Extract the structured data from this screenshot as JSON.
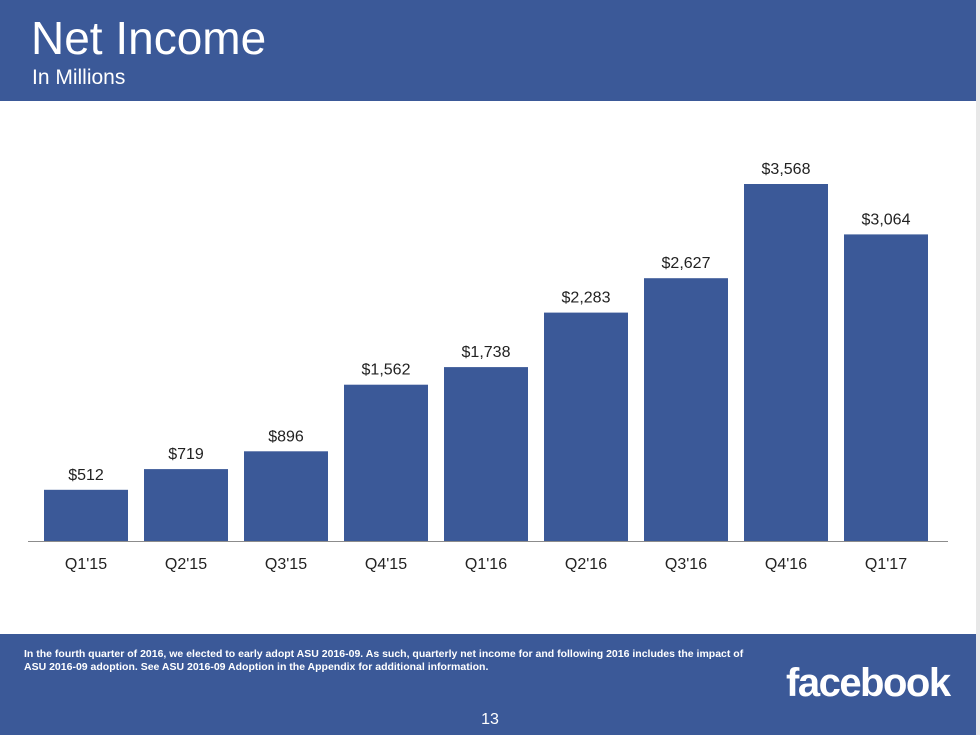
{
  "slide": {
    "title": "Net Income",
    "subtitle": "In Millions",
    "footnote": "In the fourth quarter of 2016, we elected to early adopt ASU 2016-09. As such, quarterly net income for and following 2016 includes the impact of ASU 2016-09 adoption. See ASU 2016-09 Adoption in the Appendix for additional information.",
    "logo_text": "facebook",
    "page_number": "13"
  },
  "colors": {
    "brand": "#3b5998",
    "bar": "#3b5998",
    "text": "#222222"
  },
  "chart_data": {
    "type": "bar",
    "title": "Net Income",
    "subtitle": "In Millions",
    "xlabel": "",
    "ylabel": "",
    "categories": [
      "Q1'15",
      "Q2'15",
      "Q3'15",
      "Q4'15",
      "Q1'16",
      "Q2'16",
      "Q3'16",
      "Q4'16",
      "Q1'17"
    ],
    "values": [
      512,
      719,
      896,
      1562,
      1738,
      2283,
      2627,
      3568,
      3064
    ],
    "data_labels": [
      "$512",
      "$719",
      "$896",
      "$1,562",
      "$1,738",
      "$2,283",
      "$2,627",
      "$3,568",
      "$3,064"
    ],
    "ylim": [
      0,
      3568
    ],
    "grid": false,
    "legend": "none"
  }
}
